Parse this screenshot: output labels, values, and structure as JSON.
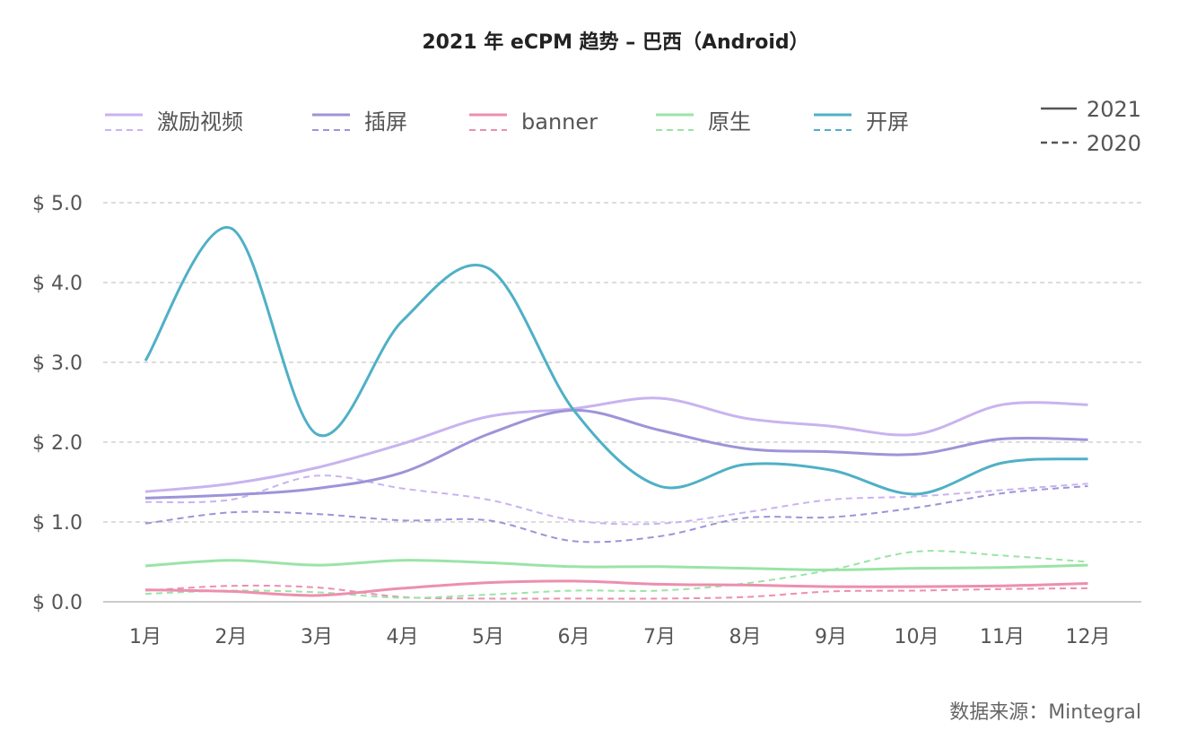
{
  "chart_data": {
    "type": "line",
    "title": "2021 年 eCPM 趋势 – 巴西（Android）",
    "source": "数据来源：Mintegral",
    "categories": [
      "1月",
      "2月",
      "3月",
      "4月",
      "5月",
      "6月",
      "7月",
      "8月",
      "9月",
      "10月",
      "11月",
      "12月"
    ],
    "ylim": [
      0,
      5
    ],
    "yticks": [
      {
        "value": 0,
        "label": "$ 0.0"
      },
      {
        "value": 1,
        "label": "$ 1.0"
      },
      {
        "value": 2,
        "label": "$ 2.0"
      },
      {
        "value": 3,
        "label": "$ 3.0"
      },
      {
        "value": 4,
        "label": "$ 4.0"
      },
      {
        "value": 5,
        "label": "$ 5.0"
      }
    ],
    "grid": true,
    "legend_position": "top",
    "line_styles": [
      {
        "style": "solid",
        "label": "2021"
      },
      {
        "style": "dashed",
        "label": "2020"
      }
    ],
    "series": [
      {
        "name": "激励视频",
        "color": "#c9b3f0",
        "values_2021": [
          1.38,
          1.48,
          1.68,
          1.98,
          2.32,
          2.42,
          2.55,
          2.3,
          2.2,
          2.1,
          2.47,
          2.47
        ],
        "values_2020": [
          1.25,
          1.28,
          1.58,
          1.42,
          1.28,
          1.02,
          0.98,
          1.12,
          1.28,
          1.32,
          1.4,
          1.48
        ]
      },
      {
        "name": "插屏",
        "color": "#9d94d8",
        "values_2021": [
          1.3,
          1.34,
          1.42,
          1.62,
          2.1,
          2.4,
          2.15,
          1.92,
          1.88,
          1.85,
          2.04,
          2.03
        ],
        "values_2020": [
          0.98,
          1.12,
          1.1,
          1.02,
          1.02,
          0.76,
          0.82,
          1.05,
          1.06,
          1.18,
          1.36,
          1.45
        ]
      },
      {
        "name": "banner",
        "color": "#ec8fae",
        "values_2021": [
          0.15,
          0.13,
          0.08,
          0.17,
          0.24,
          0.26,
          0.22,
          0.21,
          0.19,
          0.19,
          0.2,
          0.23
        ],
        "values_2020": [
          0.14,
          0.2,
          0.18,
          0.06,
          0.04,
          0.04,
          0.04,
          0.06,
          0.13,
          0.14,
          0.16,
          0.17
        ]
      },
      {
        "name": "原生",
        "color": "#9ae4a6",
        "values_2021": [
          0.45,
          0.52,
          0.46,
          0.52,
          0.49,
          0.44,
          0.44,
          0.42,
          0.4,
          0.42,
          0.43,
          0.46
        ],
        "values_2020": [
          0.1,
          0.14,
          0.12,
          0.05,
          0.09,
          0.14,
          0.14,
          0.23,
          0.4,
          0.63,
          0.58,
          0.5
        ]
      },
      {
        "name": "开屏",
        "color": "#4fb0c6",
        "values_2021": [
          3.02,
          4.68,
          2.1,
          3.52,
          4.18,
          2.4,
          1.45,
          1.72,
          1.65,
          1.35,
          1.74,
          1.79
        ],
        "values_2020": null
      }
    ]
  }
}
